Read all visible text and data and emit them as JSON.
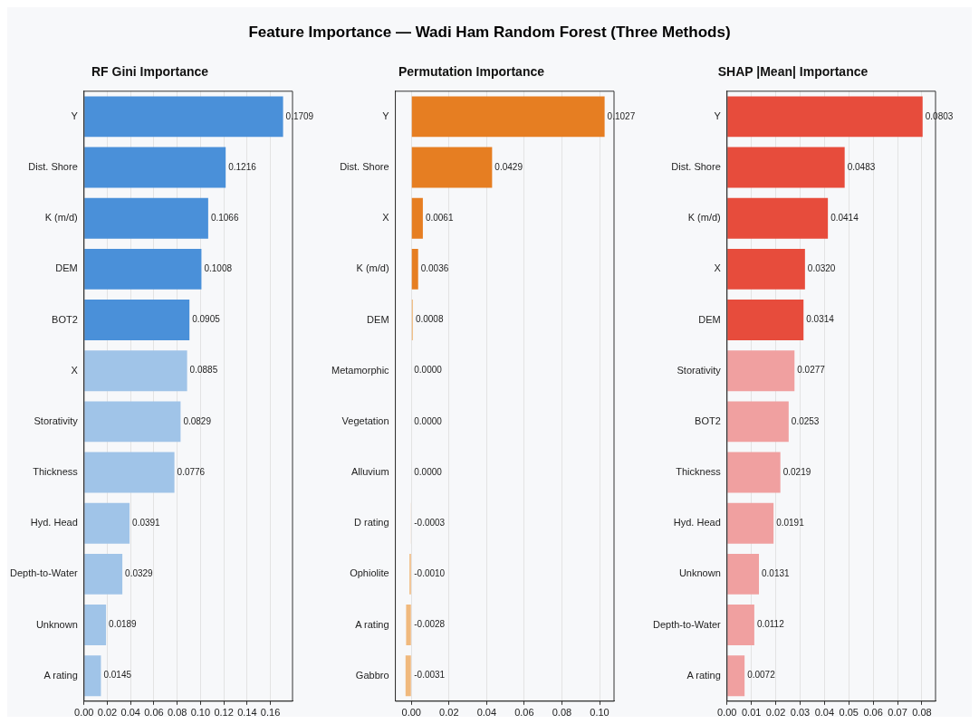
{
  "chart_data": [
    {
      "type": "bar",
      "orientation": "horizontal",
      "title": "RF Gini Importance",
      "annotations": [
        "Feature Importance — Wadi Ham Random Forest (Three Methods)"
      ],
      "categories": [
        "Y",
        "Dist. Shore",
        "K (m/d)",
        "DEM",
        "BOT2",
        "X",
        "Storativity",
        "Thickness",
        "Hyd. Head",
        "Depth-to-Water",
        "Unknown",
        "A rating"
      ],
      "values": [
        0.1709,
        0.1216,
        0.1066,
        0.1008,
        0.0905,
        0.0885,
        0.0829,
        0.0776,
        0.0391,
        0.0329,
        0.0189,
        0.0145
      ],
      "value_labels": [
        "0.1709",
        "0.1216",
        "0.1066",
        "0.1008",
        "0.0905",
        "0.0885",
        "0.0829",
        "0.0776",
        "0.0391",
        "0.0329",
        "0.0189",
        "0.0145"
      ],
      "colors": [
        "#4a90d9",
        "#4a90d9",
        "#4a90d9",
        "#4a90d9",
        "#4a90d9",
        "#a0c4e8",
        "#a0c4e8",
        "#a0c4e8",
        "#a0c4e8",
        "#a0c4e8",
        "#a0c4e8",
        "#a0c4e8"
      ],
      "xlim": [
        0,
        0.179
      ],
      "xticks": [
        {
          "value": 0,
          "label": "0.00"
        },
        {
          "value": 0.02,
          "label": "0.02"
        },
        {
          "value": 0.04,
          "label": "0.04"
        },
        {
          "value": 0.06,
          "label": "0.06"
        },
        {
          "value": 0.08,
          "label": "0.08"
        },
        {
          "value": 0.1,
          "label": "0.10"
        },
        {
          "value": 0.12,
          "label": "0.12"
        },
        {
          "value": 0.14,
          "label": "0.14"
        },
        {
          "value": 0.16,
          "label": "0.16"
        }
      ],
      "grid": "x",
      "legend": false
    },
    {
      "type": "bar",
      "orientation": "horizontal",
      "title": "Permutation Importance",
      "categories": [
        "Y",
        "Dist. Shore",
        "X",
        "K (m/d)",
        "DEM",
        "Metamorphic",
        "Vegetation",
        "Alluvium",
        "D rating",
        "Ophiolite",
        "A rating",
        "Gabbro"
      ],
      "values": [
        0.1027,
        0.0429,
        0.0061,
        0.0036,
        0.0008,
        0,
        0,
        0,
        -0.0003,
        -0.001,
        -0.0028,
        -0.0031
      ],
      "value_labels": [
        "0.1027",
        "0.0429",
        "0.0061",
        "0.0036",
        "0.0008",
        "0.0000",
        "0.0000",
        "0.0000",
        "-0.0003",
        "-0.0010",
        "-0.0028",
        "-0.0031"
      ],
      "colors": [
        "#e67e22",
        "#e67e22",
        "#e67e22",
        "#e67e22",
        "#f0b97d",
        "#f0b97d",
        "#f0b97d",
        "#f0b97d",
        "#f0b97d",
        "#f0b97d",
        "#f0b97d",
        "#f0b97d"
      ],
      "xlim": [
        -0.0085,
        0.1077
      ],
      "xticks": [
        {
          "value": 0,
          "label": "0.00"
        },
        {
          "value": 0.02,
          "label": "0.02"
        },
        {
          "value": 0.04,
          "label": "0.04"
        },
        {
          "value": 0.06,
          "label": "0.06"
        },
        {
          "value": 0.08,
          "label": "0.08"
        },
        {
          "value": 0.1,
          "label": "0.10"
        }
      ],
      "grid": "x",
      "legend": false
    },
    {
      "type": "bar",
      "orientation": "horizontal",
      "title": "SHAP |Mean| Importance",
      "categories": [
        "Y",
        "Dist. Shore",
        "K (m/d)",
        "X",
        "DEM",
        "Storativity",
        "BOT2",
        "Thickness",
        "Hyd. Head",
        "Unknown",
        "Depth-to-Water",
        "A rating"
      ],
      "values": [
        0.0803,
        0.0483,
        0.0414,
        0.032,
        0.0314,
        0.0277,
        0.0253,
        0.0219,
        0.0191,
        0.0131,
        0.0112,
        0.0072
      ],
      "value_labels": [
        "0.0803",
        "0.0483",
        "0.0414",
        "0.0320",
        "0.0314",
        "0.0277",
        "0.0253",
        "0.0219",
        "0.0191",
        "0.0131",
        "0.0112",
        "0.0072"
      ],
      "colors": [
        "#e74c3c",
        "#e74c3c",
        "#e74c3c",
        "#e74c3c",
        "#e74c3c",
        "#f0a0a0",
        "#f0a0a0",
        "#f0a0a0",
        "#f0a0a0",
        "#f0a0a0",
        "#f0a0a0",
        "#f0a0a0"
      ],
      "xlim": [
        0,
        0.0856
      ],
      "xticks": [
        {
          "value": 0,
          "label": "0.00"
        },
        {
          "value": 0.01,
          "label": "0.01"
        },
        {
          "value": 0.02,
          "label": "0.02"
        },
        {
          "value": 0.03,
          "label": "0.03"
        },
        {
          "value": 0.04,
          "label": "0.04"
        },
        {
          "value": 0.05,
          "label": "0.05"
        },
        {
          "value": 0.06,
          "label": "0.06"
        },
        {
          "value": 0.07,
          "label": "0.07"
        },
        {
          "value": 0.08,
          "label": "0.08"
        }
      ],
      "grid": "x",
      "legend": false
    }
  ]
}
